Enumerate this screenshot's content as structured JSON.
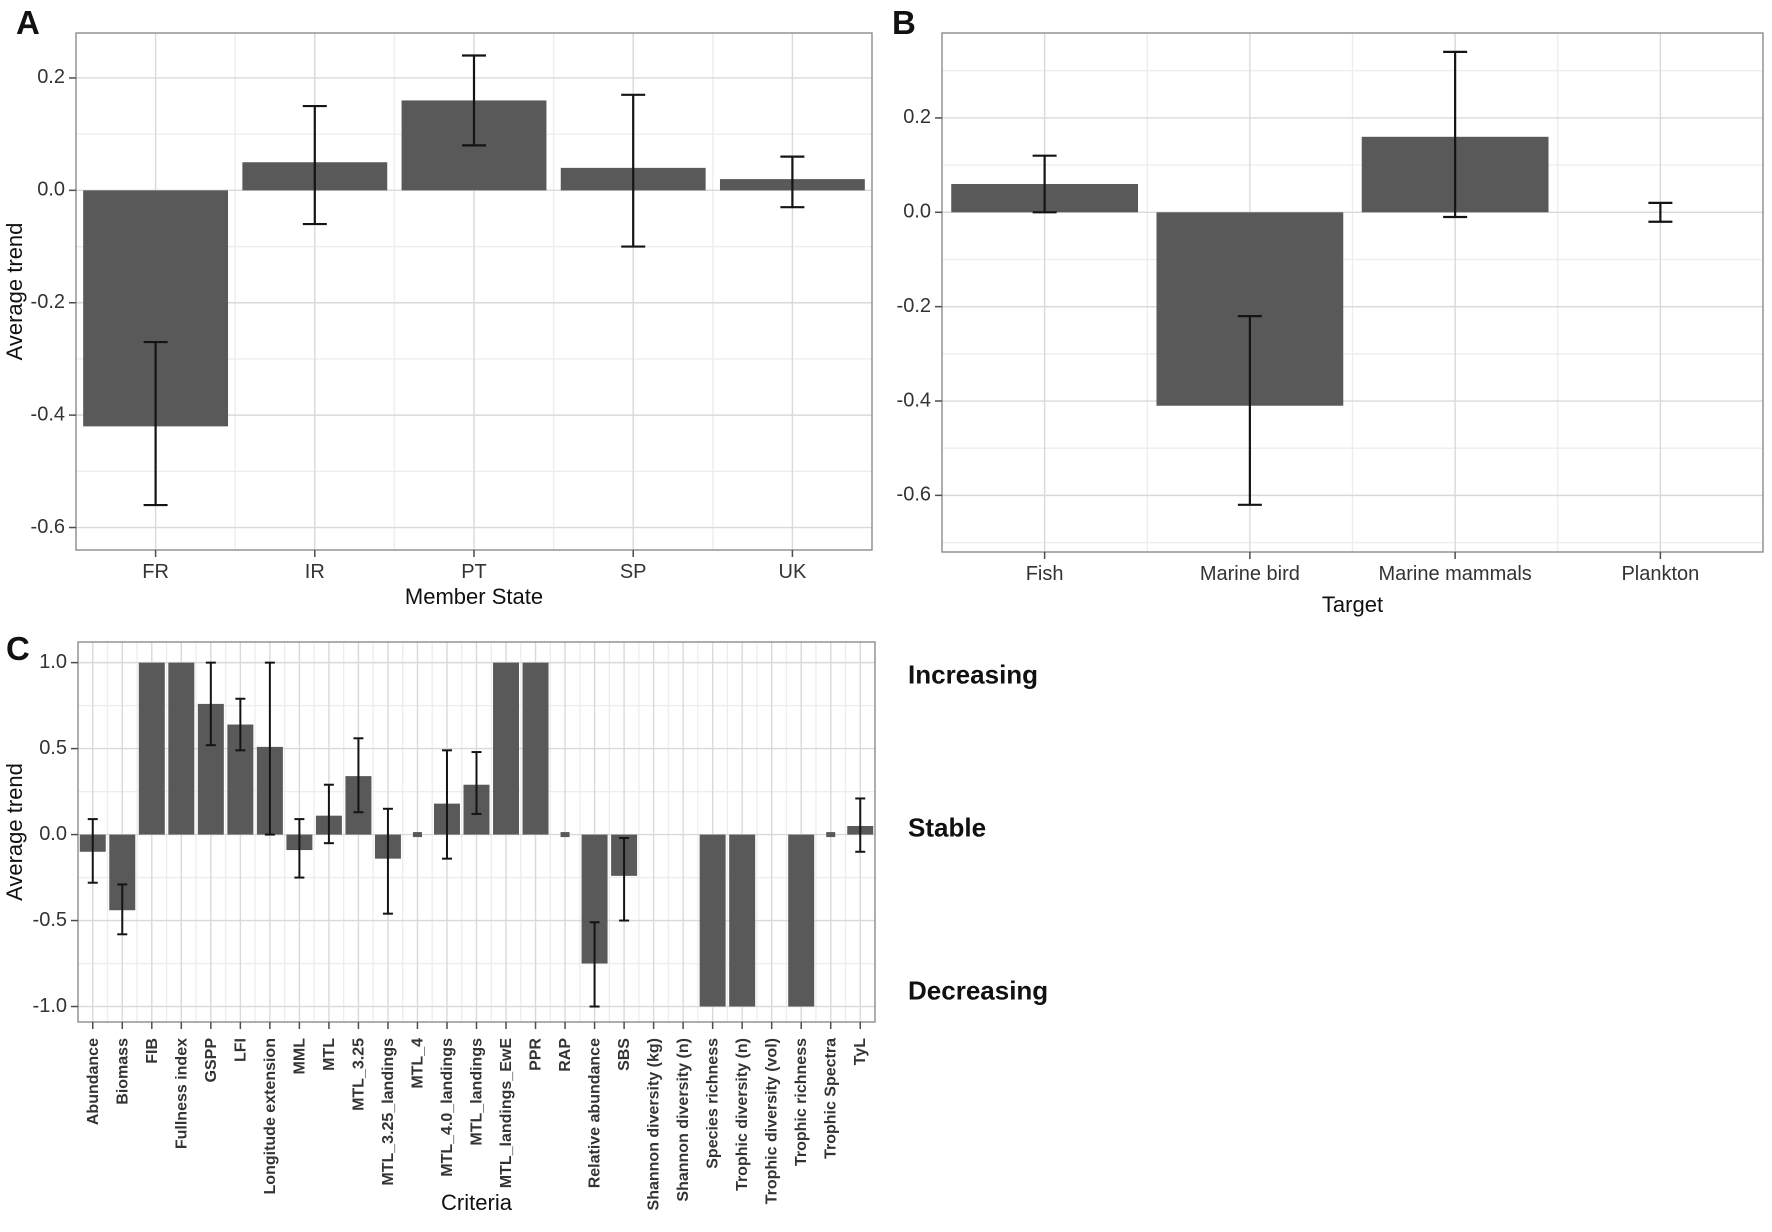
{
  "colors": {
    "bar": "#595959",
    "error_bar": "#141414",
    "grid_major": "#d9d9d9",
    "grid_minor": "#ededed",
    "panel_border": "#8c8c8c",
    "tick_mark": "#4d4d4d",
    "tick_label": "#333333",
    "axis_title": "#111111",
    "annotation": "#111111",
    "background": "#ffffff"
  },
  "chart_data": [
    {
      "panel": "A",
      "type": "bar",
      "title": "",
      "xlabel": "Member State",
      "ylabel": "Average trend",
      "categories": [
        "FR",
        "IR",
        "PT",
        "SP",
        "UK"
      ],
      "values": [
        -0.42,
        0.05,
        0.16,
        0.04,
        0.02
      ],
      "err_low": [
        -0.56,
        -0.06,
        0.08,
        -0.1,
        -0.03
      ],
      "err_high": [
        -0.27,
        0.15,
        0.24,
        0.17,
        0.06
      ],
      "markers": [
        "bar",
        "bar",
        "bar",
        "bar",
        "bar"
      ],
      "yticks": [
        0.2,
        0.0,
        -0.2,
        -0.4,
        -0.6
      ],
      "ylim": [
        -0.64,
        0.28
      ],
      "grid": true,
      "legend": "none"
    },
    {
      "panel": "B",
      "type": "bar",
      "title": "",
      "xlabel": "Target",
      "ylabel": "",
      "categories": [
        "Fish",
        "Marine bird",
        "Marine mammals",
        "Plankton"
      ],
      "values": [
        0.06,
        -0.41,
        0.16,
        0.0
      ],
      "err_low": [
        0.0,
        -0.62,
        -0.01,
        -0.02
      ],
      "err_high": [
        0.12,
        -0.22,
        0.34,
        0.02
      ],
      "markers": [
        "bar",
        "bar",
        "bar",
        "none"
      ],
      "yticks": [
        0.2,
        0.0,
        -0.2,
        -0.4,
        -0.6
      ],
      "ylim": [
        -0.72,
        0.38
      ],
      "grid": true,
      "legend": "none"
    },
    {
      "panel": "C",
      "type": "bar",
      "title": "",
      "xlabel": "Criteria",
      "ylabel": "Average trend",
      "categories": [
        "Abundance",
        "Biomass",
        "FIB",
        "Fullness index",
        "GSPP",
        "LFI",
        "Longitude extension",
        "MML",
        "MTL",
        "MTL_3.25",
        "MTL_3.25_landings",
        "MTL_4",
        "MTL_4.0_landings",
        "MTL_landings",
        "MTL_landings_EwE",
        "PPR",
        "RAP",
        "Relative abundance",
        "SBS",
        "Shannon diversity (kg)",
        "Shannon diversity (n)",
        "Species richness",
        "Trophic diversity (n)",
        "Trophic diversity (vol)",
        "Trophic richness",
        "Trophic Spectra",
        "TyL"
      ],
      "values": [
        -0.1,
        -0.44,
        1.0,
        1.0,
        0.76,
        0.64,
        0.51,
        -0.09,
        0.11,
        0.34,
        -0.14,
        0.0,
        0.18,
        0.29,
        1.0,
        1.0,
        0.0,
        -0.75,
        -0.24,
        0.0,
        0.0,
        -1.0,
        -1.0,
        0.0,
        -1.0,
        0.0,
        0.05
      ],
      "err_low": [
        -0.28,
        -0.58,
        null,
        null,
        0.52,
        0.49,
        0.0,
        -0.25,
        -0.05,
        0.13,
        -0.46,
        null,
        -0.14,
        0.12,
        null,
        null,
        null,
        -1.0,
        -0.5,
        null,
        null,
        null,
        null,
        null,
        null,
        null,
        -0.1
      ],
      "err_high": [
        0.09,
        -0.29,
        null,
        null,
        1.0,
        0.79,
        1.0,
        0.09,
        0.29,
        0.56,
        0.15,
        null,
        0.49,
        0.48,
        null,
        null,
        null,
        -0.51,
        -0.02,
        null,
        null,
        null,
        null,
        null,
        null,
        null,
        0.21
      ],
      "markers": [
        "bar",
        "bar",
        "bar",
        "bar",
        "bar",
        "bar",
        "bar",
        "bar",
        "bar",
        "bar",
        "bar",
        "dash",
        "bar",
        "bar",
        "bar",
        "bar",
        "dash",
        "bar",
        "bar",
        "none",
        "none",
        "bar",
        "bar",
        "none",
        "bar",
        "dash",
        "bar"
      ],
      "yticks": [
        1.0,
        0.5,
        0.0,
        -0.5,
        -1.0
      ],
      "ylim": [
        -1.09,
        1.12
      ],
      "grid": true,
      "legend": "none",
      "annotations": [
        {
          "text": "Increasing",
          "value": 1.0
        },
        {
          "text": "Stable",
          "value": 0.0
        },
        {
          "text": "Decreasing",
          "value": -1.0
        }
      ]
    }
  ]
}
